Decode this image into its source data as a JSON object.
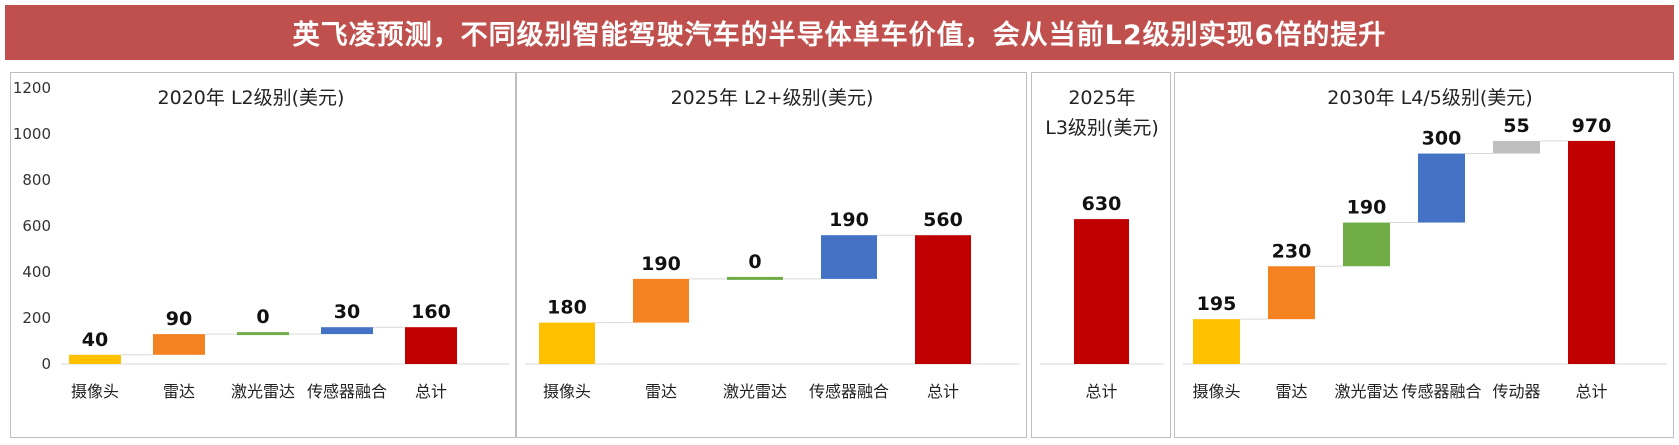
{
  "banner": {
    "title": "英飞凌预测，不同级别智能驾驶汽车的半导体单车价值，会从当前L2级别实现6倍的提升"
  },
  "colors": {
    "banner": "#c0504d",
    "camera": "#ffc000",
    "radar": "#f58220",
    "lidar": "#70ad47",
    "fusion": "#4472c4",
    "actuator": "#bfbfbf",
    "total": "#c00000",
    "connector": "#d9d9d9"
  },
  "chart_data": [
    {
      "type": "bar",
      "subtype": "waterfall",
      "title": "2020年 L2级别(美元)",
      "categories": [
        "摄像头",
        "雷达",
        "激光雷达",
        "传感器融合",
        "总计"
      ],
      "values": [
        40,
        90,
        0,
        30,
        160
      ],
      "ylim": [
        0,
        1200
      ],
      "yticks": [
        "0",
        "200",
        "400",
        "600",
        "800",
        "1000",
        "1200"
      ],
      "grid": false,
      "legend": "none"
    },
    {
      "type": "bar",
      "subtype": "waterfall",
      "title": "2025年 L2+级别(美元)",
      "categories": [
        "摄像头",
        "雷达",
        "激光雷达",
        "传感器融合",
        "总计"
      ],
      "values": [
        180,
        190,
        0,
        190,
        560
      ],
      "ylim": [
        0,
        1200
      ],
      "grid": false,
      "legend": "none"
    },
    {
      "type": "bar",
      "title_lines": [
        "2025年",
        "L3级别(美元)"
      ],
      "categories": [
        "总计"
      ],
      "values": [
        630
      ],
      "ylim": [
        0,
        1200
      ],
      "grid": false,
      "legend": "none"
    },
    {
      "type": "bar",
      "subtype": "waterfall",
      "title": "2030年 L4/5级别(美元)",
      "categories": [
        "摄像头",
        "雷达",
        "激光雷达",
        "传感器融合",
        "传动器",
        "总计"
      ],
      "values": [
        195,
        230,
        190,
        300,
        55,
        970
      ],
      "ylim": [
        0,
        1200
      ],
      "grid": false,
      "legend": "none"
    }
  ]
}
